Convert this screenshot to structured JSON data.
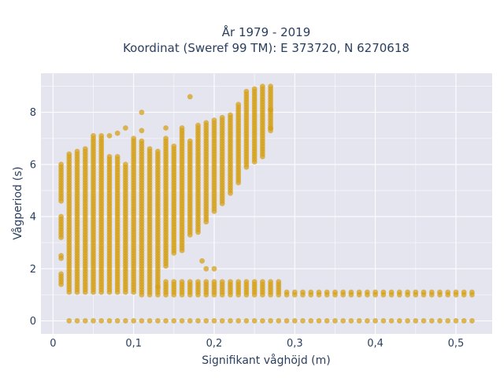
{
  "chart_data": {
    "type": "scatter",
    "title_line1": "År 1979 - 2019",
    "title_line2": "Koordinat (Sweref 99 TM): E 373720, N 6270618",
    "xlabel": "Signifikant våghöjd (m)",
    "ylabel": "Vågperiod (s)",
    "xlim": [
      -0.015,
      0.545
    ],
    "ylim": [
      -0.5,
      9.5
    ],
    "x_ticks": [
      0,
      0.1,
      0.2,
      0.3,
      0.4,
      0.5
    ],
    "x_tick_labels": [
      "0",
      "0,1",
      "0,2",
      "0,3",
      "0,4",
      "0,5"
    ],
    "y_ticks": [
      0,
      2,
      4,
      6,
      8
    ],
    "y_tick_labels": [
      "0",
      "2",
      "4",
      "6",
      "8"
    ],
    "grid": true,
    "plot_bg": "#e5e5f0",
    "marker_color": "#d4a015",
    "x_step": 0.01,
    "columns": [
      {
        "x": 0.01,
        "ranges": [
          [
            1.4,
            1.8
          ],
          [
            2.4,
            2.5
          ],
          [
            3.2,
            4.0
          ],
          [
            4.6,
            6.0
          ]
        ]
      },
      {
        "x": 0.02,
        "ranges": [
          [
            0.0,
            0.0
          ],
          [
            1.1,
            6.4
          ]
        ]
      },
      {
        "x": 0.03,
        "ranges": [
          [
            0.0,
            0.0
          ],
          [
            1.1,
            6.5
          ]
        ]
      },
      {
        "x": 0.04,
        "ranges": [
          [
            0.0,
            0.0
          ],
          [
            1.1,
            6.6
          ]
        ]
      },
      {
        "x": 0.05,
        "ranges": [
          [
            0.0,
            0.0
          ],
          [
            1.1,
            7.1
          ]
        ]
      },
      {
        "x": 0.06,
        "ranges": [
          [
            0.0,
            0.0
          ],
          [
            1.1,
            7.1
          ]
        ]
      },
      {
        "x": 0.07,
        "ranges": [
          [
            0.0,
            0.0
          ],
          [
            1.1,
            6.3
          ]
        ]
      },
      {
        "x": 0.08,
        "ranges": [
          [
            0.0,
            0.0
          ],
          [
            1.1,
            6.3
          ]
        ]
      },
      {
        "x": 0.09,
        "ranges": [
          [
            0.0,
            0.0
          ],
          [
            1.1,
            6.0
          ]
        ]
      },
      {
        "x": 0.1,
        "ranges": [
          [
            0.0,
            0.0
          ],
          [
            1.1,
            6.9
          ]
        ]
      },
      {
        "x": 0.11,
        "ranges": [
          [
            0.0,
            0.0
          ],
          [
            1.0,
            6.9
          ]
        ]
      },
      {
        "x": 0.12,
        "ranges": [
          [
            0.0,
            0.0
          ],
          [
            1.0,
            6.6
          ]
        ]
      },
      {
        "x": 0.13,
        "ranges": [
          [
            0.0,
            0.0
          ],
          [
            1.0,
            6.5
          ]
        ]
      },
      {
        "x": 0.14,
        "ranges": [
          [
            0.0,
            0.0
          ],
          [
            1.0,
            1.5
          ],
          [
            2.1,
            7.0
          ]
        ]
      },
      {
        "x": 0.15,
        "ranges": [
          [
            0.0,
            0.0
          ],
          [
            1.0,
            1.5
          ],
          [
            2.6,
            6.7
          ]
        ]
      },
      {
        "x": 0.16,
        "ranges": [
          [
            0.0,
            0.0
          ],
          [
            1.0,
            1.5
          ],
          [
            2.7,
            7.4
          ]
        ]
      },
      {
        "x": 0.17,
        "ranges": [
          [
            0.0,
            0.0
          ],
          [
            1.0,
            1.5
          ],
          [
            3.3,
            6.9
          ]
        ]
      },
      {
        "x": 0.18,
        "ranges": [
          [
            0.0,
            0.0
          ],
          [
            1.0,
            1.5
          ],
          [
            3.4,
            7.5
          ]
        ]
      },
      {
        "x": 0.19,
        "ranges": [
          [
            0.0,
            0.0
          ],
          [
            1.0,
            1.5
          ],
          [
            3.8,
            7.6
          ]
        ]
      },
      {
        "x": 0.2,
        "ranges": [
          [
            0.0,
            0.0
          ],
          [
            1.0,
            1.5
          ],
          [
            4.2,
            7.7
          ]
        ]
      },
      {
        "x": 0.21,
        "ranges": [
          [
            0.0,
            0.0
          ],
          [
            1.0,
            1.5
          ],
          [
            4.5,
            7.8
          ]
        ]
      },
      {
        "x": 0.22,
        "ranges": [
          [
            0.0,
            0.0
          ],
          [
            1.0,
            1.5
          ],
          [
            4.9,
            7.9
          ]
        ]
      },
      {
        "x": 0.23,
        "ranges": [
          [
            0.0,
            0.0
          ],
          [
            1.0,
            1.5
          ],
          [
            5.3,
            8.3
          ]
        ]
      },
      {
        "x": 0.24,
        "ranges": [
          [
            0.0,
            0.0
          ],
          [
            1.0,
            1.5
          ],
          [
            5.9,
            8.8
          ]
        ]
      },
      {
        "x": 0.25,
        "ranges": [
          [
            0.0,
            0.0
          ],
          [
            1.0,
            1.5
          ],
          [
            6.1,
            8.9
          ]
        ]
      },
      {
        "x": 0.26,
        "ranges": [
          [
            0.0,
            0.0
          ],
          [
            1.0,
            1.5
          ],
          [
            6.3,
            9.0
          ]
        ]
      },
      {
        "x": 0.27,
        "ranges": [
          [
            0.0,
            0.0
          ],
          [
            1.0,
            1.5
          ],
          [
            7.3,
            9.0
          ]
        ]
      },
      {
        "x": 0.28,
        "ranges": [
          [
            0.0,
            0.0
          ],
          [
            1.0,
            1.5
          ]
        ]
      },
      {
        "x": 0.29,
        "ranges": [
          [
            0.0,
            0.0
          ],
          [
            1.0,
            1.1
          ]
        ]
      },
      {
        "x": 0.3,
        "ranges": [
          [
            0.0,
            0.0
          ],
          [
            1.0,
            1.1
          ]
        ]
      },
      {
        "x": 0.31,
        "ranges": [
          [
            0.0,
            0.0
          ],
          [
            1.0,
            1.1
          ]
        ]
      },
      {
        "x": 0.32,
        "ranges": [
          [
            0.0,
            0.0
          ],
          [
            1.0,
            1.1
          ]
        ]
      },
      {
        "x": 0.33,
        "ranges": [
          [
            0.0,
            0.0
          ],
          [
            1.0,
            1.1
          ]
        ]
      },
      {
        "x": 0.34,
        "ranges": [
          [
            0.0,
            0.0
          ],
          [
            1.0,
            1.1
          ]
        ]
      },
      {
        "x": 0.35,
        "ranges": [
          [
            0.0,
            0.0
          ],
          [
            1.0,
            1.1
          ]
        ]
      },
      {
        "x": 0.36,
        "ranges": [
          [
            0.0,
            0.0
          ],
          [
            1.0,
            1.1
          ]
        ]
      },
      {
        "x": 0.37,
        "ranges": [
          [
            0.0,
            0.0
          ],
          [
            1.0,
            1.1
          ]
        ]
      },
      {
        "x": 0.38,
        "ranges": [
          [
            0.0,
            0.0
          ],
          [
            1.0,
            1.1
          ]
        ]
      },
      {
        "x": 0.39,
        "ranges": [
          [
            0.0,
            0.0
          ],
          [
            1.0,
            1.1
          ]
        ]
      },
      {
        "x": 0.4,
        "ranges": [
          [
            0.0,
            0.0
          ],
          [
            1.0,
            1.1
          ]
        ]
      },
      {
        "x": 0.41,
        "ranges": [
          [
            0.0,
            0.0
          ],
          [
            1.0,
            1.1
          ]
        ]
      },
      {
        "x": 0.42,
        "ranges": [
          [
            0.0,
            0.0
          ],
          [
            1.0,
            1.1
          ]
        ]
      },
      {
        "x": 0.43,
        "ranges": [
          [
            0.0,
            0.0
          ],
          [
            1.0,
            1.1
          ]
        ]
      },
      {
        "x": 0.44,
        "ranges": [
          [
            0.0,
            0.0
          ],
          [
            1.0,
            1.1
          ]
        ]
      },
      {
        "x": 0.45,
        "ranges": [
          [
            0.0,
            0.0
          ],
          [
            1.0,
            1.1
          ]
        ]
      },
      {
        "x": 0.46,
        "ranges": [
          [
            0.0,
            0.0
          ],
          [
            1.0,
            1.1
          ]
        ]
      },
      {
        "x": 0.47,
        "ranges": [
          [
            0.0,
            0.0
          ],
          [
            1.0,
            1.1
          ]
        ]
      },
      {
        "x": 0.48,
        "ranges": [
          [
            0.0,
            0.0
          ],
          [
            1.0,
            1.1
          ]
        ]
      },
      {
        "x": 0.49,
        "ranges": [
          [
            0.0,
            0.0
          ],
          [
            1.0,
            1.1
          ]
        ]
      },
      {
        "x": 0.5,
        "ranges": [
          [
            0.0,
            0.0
          ],
          [
            1.0,
            1.1
          ]
        ]
      },
      {
        "x": 0.51,
        "ranges": [
          [
            0.0,
            0.0
          ],
          [
            1.0,
            1.1
          ]
        ]
      },
      {
        "x": 0.52,
        "ranges": [
          [
            0.0,
            0.0
          ],
          [
            1.0,
            1.1
          ]
        ]
      }
    ],
    "isolated_points": [
      [
        0.07,
        7.1
      ],
      [
        0.08,
        7.2
      ],
      [
        0.09,
        7.4
      ],
      [
        0.1,
        7.0
      ],
      [
        0.11,
        8.0
      ],
      [
        0.11,
        7.3
      ],
      [
        0.14,
        7.4
      ],
      [
        0.17,
        8.6
      ],
      [
        0.185,
        2.3
      ],
      [
        0.19,
        2.0
      ],
      [
        0.2,
        2.0
      ],
      [
        0.13,
        1.3
      ],
      [
        0.27,
        8.1
      ],
      [
        0.27,
        7.4
      ]
    ]
  }
}
